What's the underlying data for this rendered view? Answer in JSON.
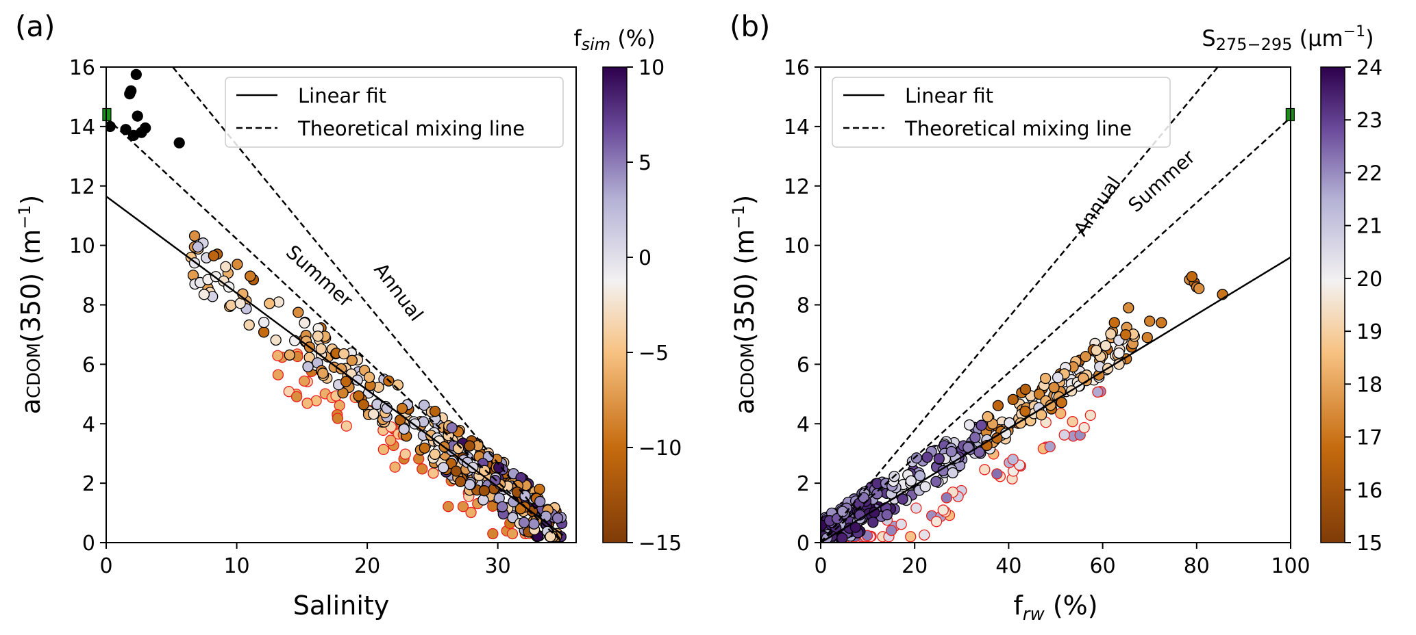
{
  "chart_data": [
    {
      "type": "scatter",
      "panel_label": "(a)",
      "xlabel": "Salinity",
      "ylabel": "aCDOM(350) (m−1)",
      "ylabel_main": "a",
      "ylabel_sub": "CDOM",
      "ylabel_rest": "(350) (m",
      "ylabel_sup": "−1",
      "ylabel_close": ")",
      "xlim": [
        0,
        36
      ],
      "ylim": [
        0,
        16
      ],
      "xticks": [
        "0",
        "10",
        "20",
        "30"
      ],
      "yticks": [
        "0",
        "2",
        "4",
        "6",
        "8",
        "10",
        "12",
        "14",
        "16"
      ],
      "legend": {
        "position": "upper-right",
        "entries": [
          "Linear fit",
          "Theoretical mixing line"
        ]
      },
      "lines": [
        {
          "name": "Linear fit",
          "style": "solid",
          "x": [
            0,
            35
          ],
          "y": [
            11.65,
            0.25
          ]
        },
        {
          "name": "Summer",
          "style": "dashed",
          "x": [
            0,
            35
          ],
          "y": [
            14.3,
            0.0
          ]
        },
        {
          "name": "Annual",
          "style": "dashed",
          "x": [
            5.1,
            35
          ],
          "y": [
            16.0,
            0.0
          ]
        }
      ],
      "annotations": [
        {
          "text": "Summer",
          "x": 16.0,
          "y": 8.8,
          "angle": 42
        },
        {
          "text": "Annual",
          "x": 22.0,
          "y": 8.3,
          "angle": 53
        }
      ],
      "endmember": {
        "x": 0.05,
        "y": 14.4,
        "color": "#1a8f1a"
      },
      "colorbar": {
        "title": "f",
        "title_sub": "sim",
        "title_rest": " (%)",
        "min": -15,
        "max": 10,
        "ticks": [
          "10",
          "5",
          "0",
          "−5",
          "−10",
          "−15"
        ],
        "tick_values": [
          10,
          5,
          0,
          -5,
          -10,
          -15
        ],
        "colormap": "PuOr"
      },
      "black_points": [
        [
          0.3,
          14.0
        ],
        [
          1.5,
          13.9
        ],
        [
          1.8,
          15.1
        ],
        [
          1.9,
          15.2
        ],
        [
          2.3,
          15.75
        ],
        [
          2.1,
          13.7
        ],
        [
          2.4,
          14.35
        ],
        [
          2.7,
          13.8
        ],
        [
          3.0,
          13.95
        ],
        [
          5.6,
          13.45
        ]
      ],
      "seed": 7
    },
    {
      "type": "scatter",
      "panel_label": "(b)",
      "xlabel": "f",
      "xlabel_sub": "rw",
      "xlabel_rest": " (%)",
      "ylabel": "aCDOM(350) (m−1)",
      "ylabel_main": "a",
      "ylabel_sub": "CDOM",
      "ylabel_rest": "(350) (m",
      "ylabel_sup": "−1",
      "ylabel_close": ")",
      "xlim": [
        0,
        100
      ],
      "ylim": [
        0,
        16
      ],
      "xticks": [
        "0",
        "20",
        "40",
        "60",
        "80",
        "100"
      ],
      "yticks": [
        "0",
        "2",
        "4",
        "6",
        "8",
        "10",
        "12",
        "14",
        "16"
      ],
      "legend": {
        "position": "upper-left",
        "entries": [
          "Linear fit",
          "Theoretical mixing line"
        ]
      },
      "lines": [
        {
          "name": "Linear fit",
          "style": "solid",
          "x": [
            0,
            100
          ],
          "y": [
            0.0,
            9.6
          ]
        },
        {
          "name": "Summer",
          "style": "dashed",
          "x": [
            0,
            100
          ],
          "y": [
            0.0,
            14.3
          ]
        },
        {
          "name": "Annual",
          "style": "dashed",
          "x": [
            0,
            84.5
          ],
          "y": [
            0.0,
            16.0
          ]
        }
      ],
      "annotations": [
        {
          "text": "Summer",
          "x": 73.5,
          "y": 12.0,
          "angle": -42
        },
        {
          "text": "Annual",
          "x": 60.0,
          "y": 11.2,
          "angle": -56
        }
      ],
      "endmember": {
        "x": 99.9,
        "y": 14.4,
        "color": "#1a8f1a"
      },
      "colorbar": {
        "title": "S",
        "title_sub": "275−295",
        "title_rest": " (μm",
        "title_sup": "−1",
        "title_close": ")",
        "min": 15,
        "max": 24,
        "ticks": [
          "24",
          "23",
          "22",
          "21",
          "20",
          "19",
          "18",
          "17",
          "16",
          "15"
        ],
        "tick_values": [
          24,
          23,
          22,
          21,
          20,
          19,
          18,
          17,
          16,
          15
        ],
        "colormap": "PuOr"
      },
      "highlight_points": [
        [
          78.5,
          8.85
        ],
        [
          79.5,
          8.75
        ],
        [
          80.0,
          8.6
        ],
        [
          79.0,
          8.95
        ],
        [
          80.5,
          8.55
        ],
        [
          85.5,
          8.35
        ],
        [
          65.5,
          7.9
        ],
        [
          62.5,
          7.4
        ],
        [
          70.0,
          7.45
        ],
        [
          72.5,
          7.4
        ],
        [
          69.5,
          6.9
        ]
      ],
      "seed": 11
    }
  ]
}
